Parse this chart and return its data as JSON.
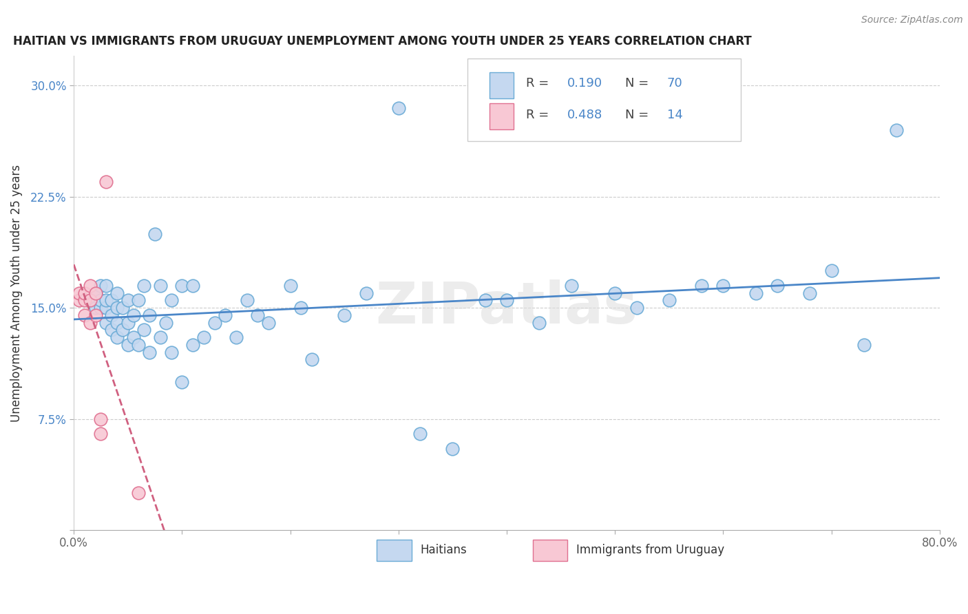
{
  "title": "HAITIAN VS IMMIGRANTS FROM URUGUAY UNEMPLOYMENT AMONG YOUTH UNDER 25 YEARS CORRELATION CHART",
  "source": "Source: ZipAtlas.com",
  "ylabel": "Unemployment Among Youth under 25 years",
  "xlim": [
    0,
    0.8
  ],
  "ylim": [
    0,
    0.32
  ],
  "xtick_positions": [
    0.0,
    0.1,
    0.2,
    0.3,
    0.4,
    0.5,
    0.6,
    0.7,
    0.8
  ],
  "ytick_positions": [
    0.0,
    0.075,
    0.15,
    0.225,
    0.3
  ],
  "yticklabels": [
    "",
    "7.5%",
    "15.0%",
    "22.5%",
    "30.0%"
  ],
  "haitian_fill": "#c5d8f0",
  "haitian_edge": "#6aabd6",
  "uruguay_fill": "#f8c8d4",
  "uruguay_edge": "#e07090",
  "haitian_line_color": "#4a86c8",
  "uruguay_line_color": "#d06080",
  "watermark": "ZIPatlas",
  "legend_R1": "0.190",
  "legend_N1": "70",
  "legend_R2": "0.488",
  "legend_N2": "14",
  "text_blue": "#4a86c8",
  "text_black": "#444444",
  "haitian_x": [
    0.015,
    0.02,
    0.02,
    0.025,
    0.025,
    0.025,
    0.03,
    0.03,
    0.03,
    0.03,
    0.035,
    0.035,
    0.035,
    0.04,
    0.04,
    0.04,
    0.04,
    0.045,
    0.045,
    0.05,
    0.05,
    0.05,
    0.055,
    0.055,
    0.06,
    0.06,
    0.065,
    0.065,
    0.07,
    0.07,
    0.075,
    0.08,
    0.08,
    0.085,
    0.09,
    0.09,
    0.1,
    0.1,
    0.11,
    0.11,
    0.12,
    0.13,
    0.14,
    0.15,
    0.16,
    0.17,
    0.18,
    0.2,
    0.21,
    0.22,
    0.25,
    0.27,
    0.3,
    0.32,
    0.35,
    0.38,
    0.4,
    0.43,
    0.46,
    0.5,
    0.52,
    0.55,
    0.58,
    0.6,
    0.63,
    0.65,
    0.68,
    0.7,
    0.73,
    0.76
  ],
  "haitian_y": [
    0.155,
    0.15,
    0.16,
    0.15,
    0.155,
    0.165,
    0.14,
    0.15,
    0.155,
    0.165,
    0.135,
    0.145,
    0.155,
    0.13,
    0.14,
    0.15,
    0.16,
    0.135,
    0.15,
    0.125,
    0.14,
    0.155,
    0.13,
    0.145,
    0.125,
    0.155,
    0.135,
    0.165,
    0.12,
    0.145,
    0.2,
    0.13,
    0.165,
    0.14,
    0.12,
    0.155,
    0.1,
    0.165,
    0.125,
    0.165,
    0.13,
    0.14,
    0.145,
    0.13,
    0.155,
    0.145,
    0.14,
    0.165,
    0.15,
    0.115,
    0.145,
    0.16,
    0.285,
    0.065,
    0.055,
    0.155,
    0.155,
    0.14,
    0.165,
    0.16,
    0.15,
    0.155,
    0.165,
    0.165,
    0.16,
    0.165,
    0.16,
    0.175,
    0.125,
    0.27
  ],
  "uruguay_x": [
    0.005,
    0.005,
    0.01,
    0.01,
    0.01,
    0.015,
    0.015,
    0.015,
    0.02,
    0.02,
    0.025,
    0.025,
    0.03,
    0.06
  ],
  "uruguay_y": [
    0.155,
    0.16,
    0.145,
    0.155,
    0.16,
    0.14,
    0.155,
    0.165,
    0.145,
    0.16,
    0.065,
    0.075,
    0.235,
    0.025
  ]
}
